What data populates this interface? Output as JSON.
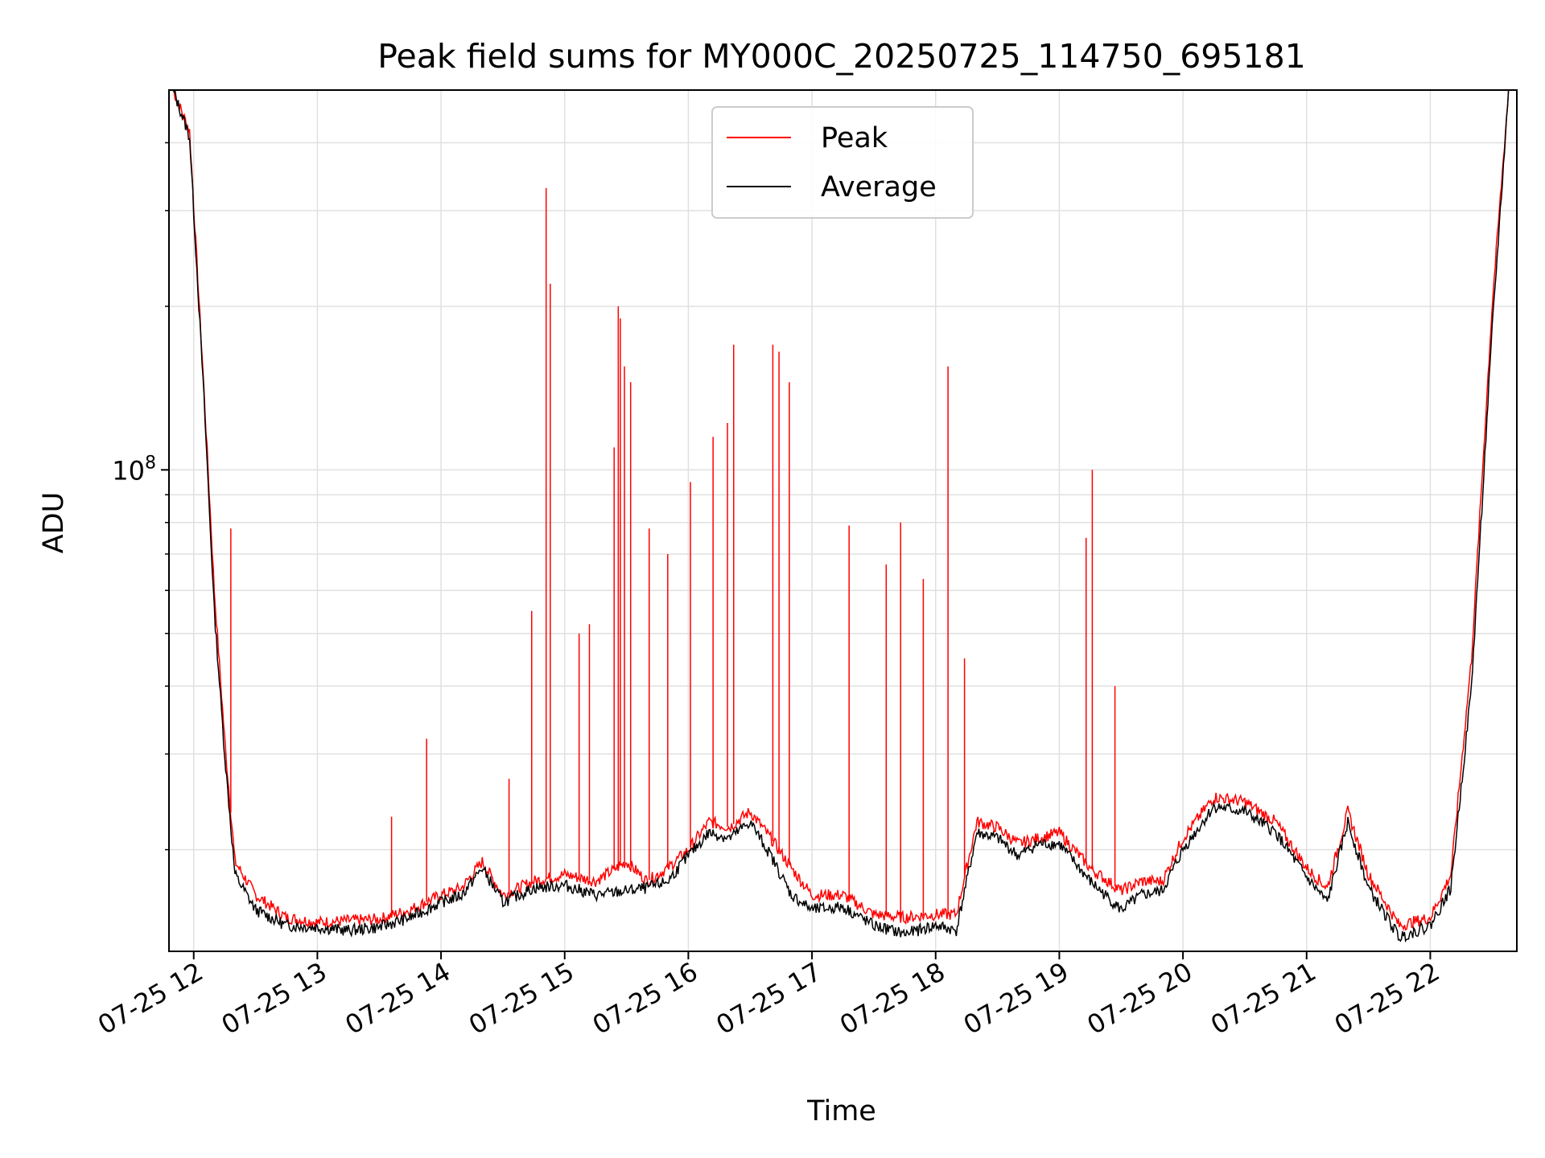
{
  "chart_data": {
    "type": "line",
    "title": "Peak field sums for MY000C_20250725_114750_695181",
    "xlabel": "Time",
    "ylabel": "ADU",
    "yscale": "log",
    "xlim": [
      "2025-07-25 11:48",
      "2025-07-25 22:42"
    ],
    "ylim": [
      13000000,
      500000000
    ],
    "grid": true,
    "legend_position": "top-center",
    "x_ticks": [
      "2025-07-25 12:00",
      "2025-07-25 13:00",
      "2025-07-25 14:00",
      "2025-07-25 15:00",
      "2025-07-25 16:00",
      "2025-07-25 17:00",
      "2025-07-25 18:00",
      "2025-07-25 19:00",
      "2025-07-25 20:00",
      "2025-07-25 21:00",
      "2025-07-25 22:00"
    ],
    "x_tick_labels": [
      "07-25 12",
      "07-25 13",
      "07-25 14",
      "07-25 15",
      "07-25 16",
      "07-25 17",
      "07-25 18",
      "07-25 19",
      "07-25 20",
      "07-25 21",
      "07-25 22"
    ],
    "y_ticks": [
      100000000
    ],
    "y_tick_labels": [
      {
        "base": "10",
        "exp": "8"
      }
    ],
    "y_minor_ticks": [
      20000000,
      30000000,
      40000000,
      50000000,
      60000000,
      70000000,
      80000000,
      90000000,
      200000000,
      300000000,
      400000000
    ],
    "series": [
      {
        "name": "Peak",
        "color": "#ff0000",
        "x": [
          "2025-07-25 11:50",
          "2025-07-25 11:58",
          "2025-07-25 12:05",
          "2025-07-25 12:10",
          "2025-07-25 12:15",
          "2025-07-25 12:20",
          "2025-07-25 12:30",
          "2025-07-25 12:45",
          "2025-07-25 13:00",
          "2025-07-25 13:15",
          "2025-07-25 13:30",
          "2025-07-25 13:45",
          "2025-07-25 14:00",
          "2025-07-25 14:10",
          "2025-07-25 14:20",
          "2025-07-25 14:30",
          "2025-07-25 14:45",
          "2025-07-25 15:00",
          "2025-07-25 15:15",
          "2025-07-25 15:30",
          "2025-07-25 15:40",
          "2025-07-25 15:50",
          "2025-07-25 16:00",
          "2025-07-25 16:10",
          "2025-07-25 16:20",
          "2025-07-25 16:30",
          "2025-07-25 16:40",
          "2025-07-25 16:50",
          "2025-07-25 17:00",
          "2025-07-25 17:15",
          "2025-07-25 17:30",
          "2025-07-25 17:45",
          "2025-07-25 18:00",
          "2025-07-25 18:10",
          "2025-07-25 18:20",
          "2025-07-25 18:30",
          "2025-07-25 18:40",
          "2025-07-25 18:50",
          "2025-07-25 19:00",
          "2025-07-25 19:15",
          "2025-07-25 19:30",
          "2025-07-25 19:40",
          "2025-07-25 19:50",
          "2025-07-25 20:00",
          "2025-07-25 20:15",
          "2025-07-25 20:30",
          "2025-07-25 20:45",
          "2025-07-25 21:00",
          "2025-07-25 21:10",
          "2025-07-25 21:20",
          "2025-07-25 21:30",
          "2025-07-25 21:45",
          "2025-07-25 22:00",
          "2025-07-25 22:10",
          "2025-07-25 22:20",
          "2025-07-25 22:30",
          "2025-07-25 22:38"
        ],
        "values": [
          500000000,
          420000000,
          140000000,
          60000000,
          32000000,
          19000000,
          16500000,
          15000000,
          14700000,
          14800000,
          14900000,
          15500000,
          16500000,
          17000000,
          19000000,
          16500000,
          17500000,
          18000000,
          17500000,
          19000000,
          17500000,
          18500000,
          20000000,
          22500000,
          22000000,
          23500000,
          21000000,
          18500000,
          16500000,
          16500000,
          15200000,
          15000000,
          15200000,
          15200000,
          22500000,
          22000000,
          20500000,
          21000000,
          21500000,
          18500000,
          16800000,
          17500000,
          17500000,
          21000000,
          25000000,
          24500000,
          22500000,
          18500000,
          17000000,
          23500000,
          18000000,
          14500000,
          15000000,
          18000000,
          45000000,
          200000000,
          500000000
        ]
      },
      {
        "name": "Average",
        "color": "#000000",
        "x": [
          "2025-07-25 11:50",
          "2025-07-25 11:58",
          "2025-07-25 12:05",
          "2025-07-25 12:10",
          "2025-07-25 12:15",
          "2025-07-25 12:20",
          "2025-07-25 12:30",
          "2025-07-25 12:45",
          "2025-07-25 13:00",
          "2025-07-25 13:15",
          "2025-07-25 13:30",
          "2025-07-25 13:45",
          "2025-07-25 14:00",
          "2025-07-25 14:10",
          "2025-07-25 14:20",
          "2025-07-25 14:30",
          "2025-07-25 14:45",
          "2025-07-25 15:00",
          "2025-07-25 15:15",
          "2025-07-25 15:30",
          "2025-07-25 15:40",
          "2025-07-25 15:50",
          "2025-07-25 16:00",
          "2025-07-25 16:10",
          "2025-07-25 16:20",
          "2025-07-25 16:30",
          "2025-07-25 16:40",
          "2025-07-25 16:50",
          "2025-07-25 17:00",
          "2025-07-25 17:15",
          "2025-07-25 17:30",
          "2025-07-25 17:45",
          "2025-07-25 18:00",
          "2025-07-25 18:10",
          "2025-07-25 18:20",
          "2025-07-25 18:30",
          "2025-07-25 18:40",
          "2025-07-25 18:50",
          "2025-07-25 19:00",
          "2025-07-25 19:15",
          "2025-07-25 19:30",
          "2025-07-25 19:40",
          "2025-07-25 19:50",
          "2025-07-25 20:00",
          "2025-07-25 20:15",
          "2025-07-25 20:30",
          "2025-07-25 20:45",
          "2025-07-25 21:00",
          "2025-07-25 21:10",
          "2025-07-25 21:20",
          "2025-07-25 21:30",
          "2025-07-25 21:45",
          "2025-07-25 22:00",
          "2025-07-25 22:10",
          "2025-07-25 22:20",
          "2025-07-25 22:30",
          "2025-07-25 22:38"
        ],
        "values": [
          500000000,
          410000000,
          135000000,
          55000000,
          30000000,
          18000000,
          15500000,
          14500000,
          14400000,
          14200000,
          14400000,
          15000000,
          16000000,
          16500000,
          18500000,
          16000000,
          17000000,
          17200000,
          16500000,
          16800000,
          17000000,
          17500000,
          19500000,
          21500000,
          21000000,
          22500000,
          19500000,
          16500000,
          15500000,
          15700000,
          14500000,
          14000000,
          14500000,
          14200000,
          21500000,
          21000000,
          19500000,
          20500000,
          20500000,
          17500000,
          15500000,
          16500000,
          16800000,
          20000000,
          24000000,
          23500000,
          21500000,
          17800000,
          16000000,
          22500000,
          17000000,
          13800000,
          14500000,
          17000000,
          40000000,
          180000000,
          500000000
        ]
      }
    ],
    "spikes": {
      "series": "Peak",
      "x": [
        "2025-07-25 12:18",
        "2025-07-25 13:36",
        "2025-07-25 13:53",
        "2025-07-25 14:33",
        "2025-07-25 14:44",
        "2025-07-25 14:51",
        "2025-07-25 14:53",
        "2025-07-25 15:07",
        "2025-07-25 15:12",
        "2025-07-25 15:24",
        "2025-07-25 15:26",
        "2025-07-25 15:27",
        "2025-07-25 15:29",
        "2025-07-25 15:32",
        "2025-07-25 15:41",
        "2025-07-25 15:50",
        "2025-07-25 16:01",
        "2025-07-25 16:12",
        "2025-07-25 16:19",
        "2025-07-25 16:22",
        "2025-07-25 16:41",
        "2025-07-25 16:44",
        "2025-07-25 16:49",
        "2025-07-25 17:18",
        "2025-07-25 17:36",
        "2025-07-25 17:43",
        "2025-07-25 17:54",
        "2025-07-25 18:06",
        "2025-07-25 18:14",
        "2025-07-25 19:13",
        "2025-07-25 19:16",
        "2025-07-25 19:27"
      ],
      "values": [
        78000000,
        23000000,
        32000000,
        27000000,
        55000000,
        330000000,
        220000000,
        50000000,
        52000000,
        110000000,
        200000000,
        190000000,
        155000000,
        145000000,
        78000000,
        70000000,
        95000000,
        115000000,
        122000000,
        170000000,
        170000000,
        165000000,
        145000000,
        79000000,
        67000000,
        80000000,
        63000000,
        155000000,
        45000000,
        75000000,
        100000000,
        40000000
      ]
    }
  }
}
